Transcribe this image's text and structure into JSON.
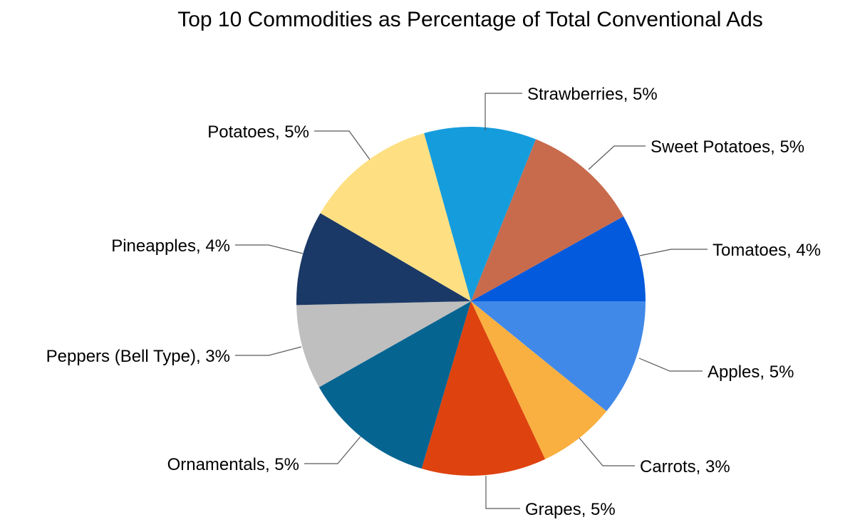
{
  "chart_data": {
    "type": "pie",
    "title": "Top 10 Commodities as Percentage of Total Conventional Ads",
    "start": "3 o'clock, clockwise",
    "slices": [
      {
        "name": "Apples",
        "value": 4.7,
        "label": "Apples, 5%",
        "color": "#4189E8"
      },
      {
        "name": "Carrots",
        "value": 3.1,
        "label": "Carrots, 3%",
        "color": "#F9B041"
      },
      {
        "name": "Grapes",
        "value": 5.0,
        "label": "Grapes, 5%",
        "color": "#DE420E"
      },
      {
        "name": "Ornamentals",
        "value": 5.3,
        "label": "Ornamentals, 5%",
        "color": "#066491"
      },
      {
        "name": "Peppers (Bell Type)",
        "value": 3.4,
        "label": "Peppers (Bell Type), 3%",
        "color": "#BFBFBF"
      },
      {
        "name": "Pineapples",
        "value": 3.8,
        "label": "Pineapples, 4%",
        "color": "#1B3966"
      },
      {
        "name": "Potatoes",
        "value": 5.3,
        "label": "Potatoes, 5%",
        "color": "#FEE083"
      },
      {
        "name": "Strawberries",
        "value": 4.5,
        "label": "Strawberries, 5%",
        "color": "#159CDC"
      },
      {
        "name": "Sweet Potatoes",
        "value": 4.7,
        "label": "Sweet Potatoes, 5%",
        "color": "#C86B4D"
      },
      {
        "name": "Tomatoes",
        "value": 3.5,
        "label": "Tomatoes, 4%",
        "color": "#045ADC"
      }
    ]
  }
}
